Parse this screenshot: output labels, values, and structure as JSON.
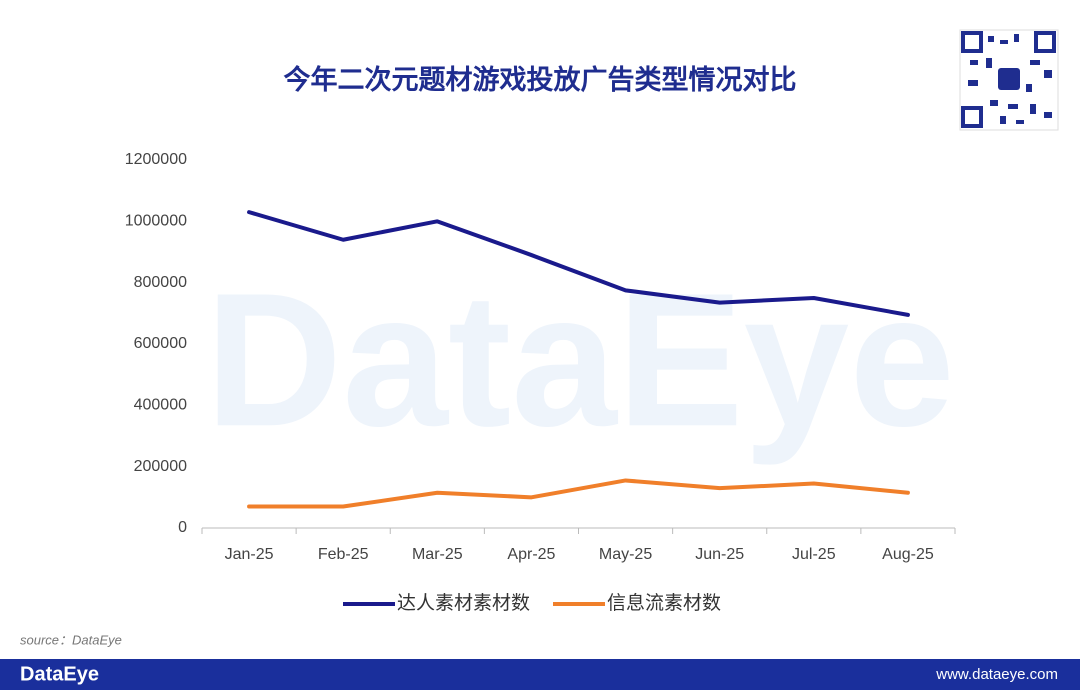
{
  "chart_data": {
    "type": "line",
    "title": "今年二次元题材游戏投放广告类型情况对比",
    "categories": [
      "Jan-25",
      "Feb-25",
      "Mar-25",
      "Apr-25",
      "May-25",
      "Jun-25",
      "Jul-25",
      "Aug-25"
    ],
    "series": [
      {
        "name": "达人素材素材数",
        "color": "#1a1a8c",
        "values": [
          1030000,
          940000,
          1000000,
          890000,
          775000,
          735000,
          750000,
          695000
        ]
      },
      {
        "name": "信息流素材数",
        "color": "#f07f2a",
        "values": [
          70000,
          70000,
          115000,
          100000,
          155000,
          130000,
          145000,
          115000
        ]
      }
    ],
    "ylim": [
      0,
      1200000
    ],
    "yticks": [
      0,
      200000,
      400000,
      600000,
      800000,
      1000000,
      1200000
    ],
    "grid": false,
    "legend": "bottom"
  },
  "watermark": "DataEye",
  "source": "source：DataEye",
  "footer": {
    "brand": "DataEye",
    "url": "www.dataeye.com"
  }
}
